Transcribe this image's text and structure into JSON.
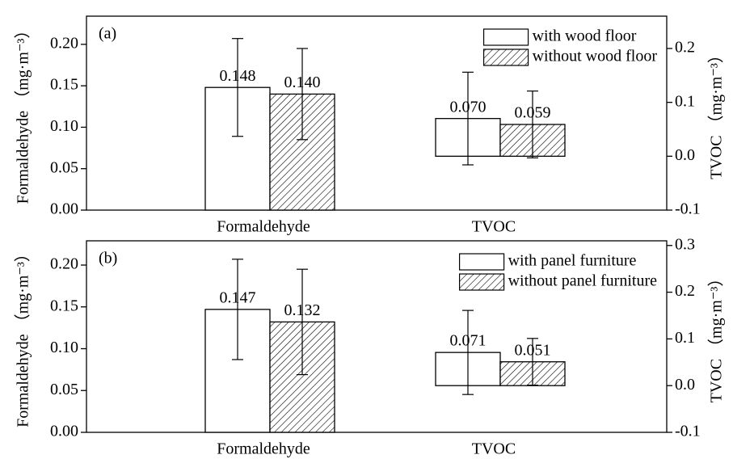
{
  "chart_data": [
    {
      "type": "bar",
      "annotation": "(a)",
      "categories": [
        "Formaldehyde",
        "TVOC"
      ],
      "category_axes": [
        "y",
        "y2"
      ],
      "ylabel": "Formaldehyde （mg·m⁻³）",
      "y2label": "TVOC （mg·m⁻³）",
      "ylim": [
        0,
        0.234
      ],
      "yticks": [
        {
          "value": 0,
          "label": "0.00"
        },
        {
          "value": 0.05,
          "label": "0.05"
        },
        {
          "value": 0.1,
          "label": "0.10"
        },
        {
          "value": 0.15,
          "label": "0.15"
        },
        {
          "value": 0.2,
          "label": "0.20"
        }
      ],
      "y2lim": [
        -0.1,
        0.26
      ],
      "y2ticks": [
        -0.1,
        {
          "value": 0,
          "label": "0.0"
        },
        0.1,
        0.2
      ],
      "legend": "upper right",
      "series": [
        {
          "name": "with wood floor",
          "color": "#ffffff",
          "hatch": false,
          "values": [
            0.148,
            0.07
          ],
          "value_labels": [
            "0.148",
            "0.070"
          ],
          "errors": [
            0.059,
            0.086
          ]
        },
        {
          "name": "without wood floor",
          "color": "#ffffff",
          "hatch": true,
          "values": [
            0.14,
            0.059
          ],
          "value_labels": [
            "0.140",
            "0.059"
          ],
          "errors": [
            0.055,
            0.062
          ]
        }
      ]
    },
    {
      "type": "bar",
      "annotation": "(b)",
      "categories": [
        "Formaldehyde",
        "TVOC"
      ],
      "category_axes": [
        "y",
        "y2"
      ],
      "ylabel": "Formaldehyde （mg·m⁻³）",
      "y2label": "TVOC （mg·m⁻³）",
      "ylim": [
        0,
        0.229
      ],
      "yticks": [
        {
          "value": 0,
          "label": "0.00"
        },
        {
          "value": 0.05,
          "label": "0.05"
        },
        {
          "value": 0.1,
          "label": "0.10"
        },
        {
          "value": 0.15,
          "label": "0.15"
        },
        {
          "value": 0.2,
          "label": "0.20"
        }
      ],
      "y2lim": [
        -0.1,
        0.31
      ],
      "y2ticks": [
        -0.1,
        {
          "value": 0,
          "label": "0.0"
        },
        0.1,
        0.2,
        0.3
      ],
      "legend": "upper right",
      "series": [
        {
          "name": "with panel furniture",
          "color": "#ffffff",
          "hatch": false,
          "values": [
            0.147,
            0.071
          ],
          "value_labels": [
            "0.147",
            "0.071"
          ],
          "errors": [
            0.06,
            0.09
          ]
        },
        {
          "name": "without panel furniture",
          "color": "#ffffff",
          "hatch": true,
          "values": [
            0.132,
            0.051
          ],
          "value_labels": [
            "0.132",
            "0.051"
          ],
          "errors": [
            0.063,
            0.05
          ]
        }
      ]
    }
  ]
}
